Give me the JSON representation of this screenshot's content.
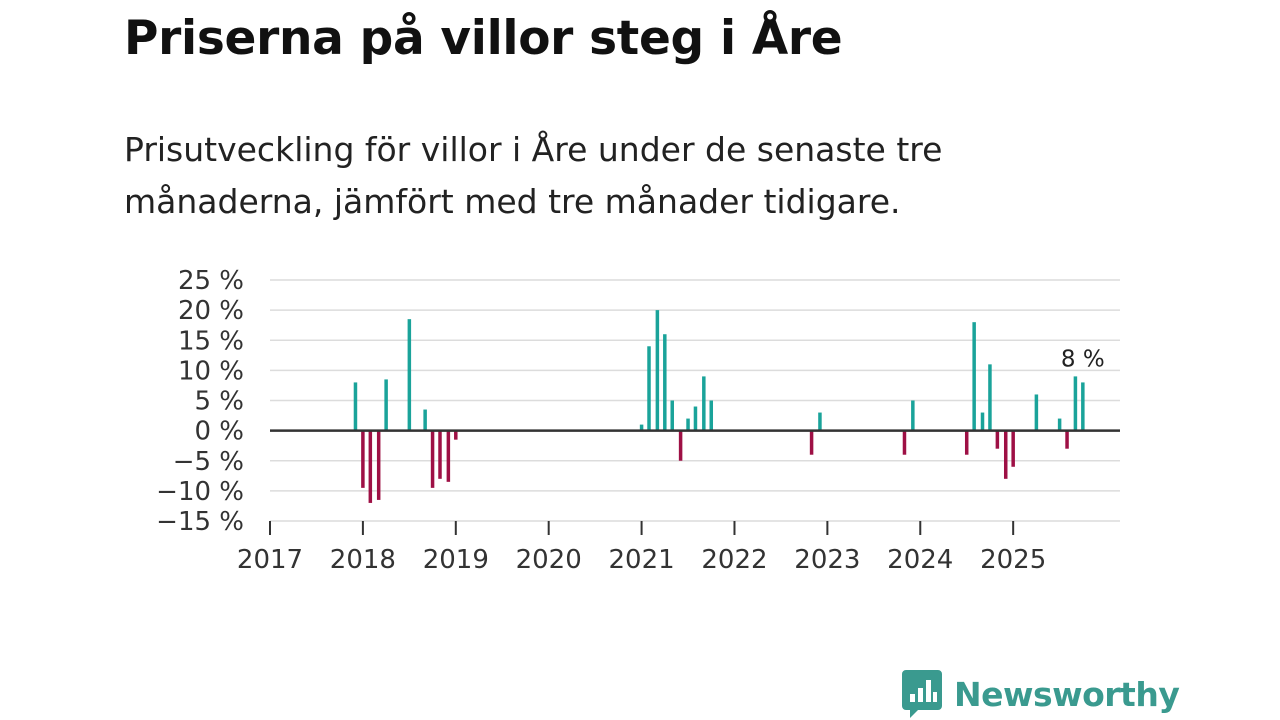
{
  "title": "Priserna på villor steg i Åre",
  "subtitle": "Prisutveckling för villor i Åre under de senaste tre månaderna, jämfört med tre månader tidigare.",
  "brand": {
    "name": "Newsworthy",
    "icon": "newsworthy-logo-icon"
  },
  "colors": {
    "positive": "#1aa39a",
    "negative": "#9e1045",
    "grid": "#dcdcdc",
    "zero": "#333333",
    "brand": "#3a9a8f"
  },
  "chart_data": {
    "type": "bar",
    "title": "Priserna på villor steg i Åre",
    "xlabel": "",
    "ylabel": "",
    "ylim": [
      -15,
      25
    ],
    "yticks": [
      25,
      20,
      15,
      10,
      5,
      0,
      -5,
      -10,
      -15
    ],
    "ytick_labels": [
      "25 %",
      "20 %",
      "15 %",
      "10 %",
      "5 %",
      "0 %",
      "−5 %",
      "−10 %",
      "−15 %"
    ],
    "xlim": [
      2017.0,
      2026.15
    ],
    "xticks": [
      2017,
      2018,
      2019,
      2020,
      2021,
      2022,
      2023,
      2024,
      2025
    ],
    "xtick_labels": [
      "2017",
      "2018",
      "2019",
      "2020",
      "2021",
      "2022",
      "2023",
      "2024",
      "2025"
    ],
    "grid": true,
    "annotation": {
      "text": "8 %",
      "target": "last"
    },
    "series": [
      {
        "name": "Prisutveckling",
        "points": [
          {
            "x": 2017.92,
            "value": 8
          },
          {
            "x": 2018.0,
            "value": -9.5
          },
          {
            "x": 2018.08,
            "value": -12
          },
          {
            "x": 2018.17,
            "value": -11.5
          },
          {
            "x": 2018.25,
            "value": 8.5
          },
          {
            "x": 2018.5,
            "value": 18.5
          },
          {
            "x": 2018.67,
            "value": 3.5
          },
          {
            "x": 2018.75,
            "value": -9.5
          },
          {
            "x": 2018.83,
            "value": -8
          },
          {
            "x": 2018.92,
            "value": -8.5
          },
          {
            "x": 2019.0,
            "value": -1.5
          },
          {
            "x": 2021.0,
            "value": 1
          },
          {
            "x": 2021.08,
            "value": 14
          },
          {
            "x": 2021.17,
            "value": 20
          },
          {
            "x": 2021.25,
            "value": 16
          },
          {
            "x": 2021.33,
            "value": 5
          },
          {
            "x": 2021.42,
            "value": -5
          },
          {
            "x": 2021.5,
            "value": 2
          },
          {
            "x": 2021.58,
            "value": 4
          },
          {
            "x": 2021.67,
            "value": 9
          },
          {
            "x": 2021.75,
            "value": 5
          },
          {
            "x": 2022.83,
            "value": -4
          },
          {
            "x": 2022.92,
            "value": 3
          },
          {
            "x": 2023.83,
            "value": -4
          },
          {
            "x": 2023.92,
            "value": 5
          },
          {
            "x": 2024.5,
            "value": -4
          },
          {
            "x": 2024.58,
            "value": 18
          },
          {
            "x": 2024.67,
            "value": 3
          },
          {
            "x": 2024.75,
            "value": 11
          },
          {
            "x": 2024.83,
            "value": -3
          },
          {
            "x": 2024.92,
            "value": -8
          },
          {
            "x": 2025.0,
            "value": -6
          },
          {
            "x": 2025.25,
            "value": 6
          },
          {
            "x": 2025.5,
            "value": 2
          },
          {
            "x": 2025.58,
            "value": -3
          },
          {
            "x": 2025.67,
            "value": 9
          },
          {
            "x": 2025.75,
            "value": 8
          }
        ]
      }
    ]
  }
}
